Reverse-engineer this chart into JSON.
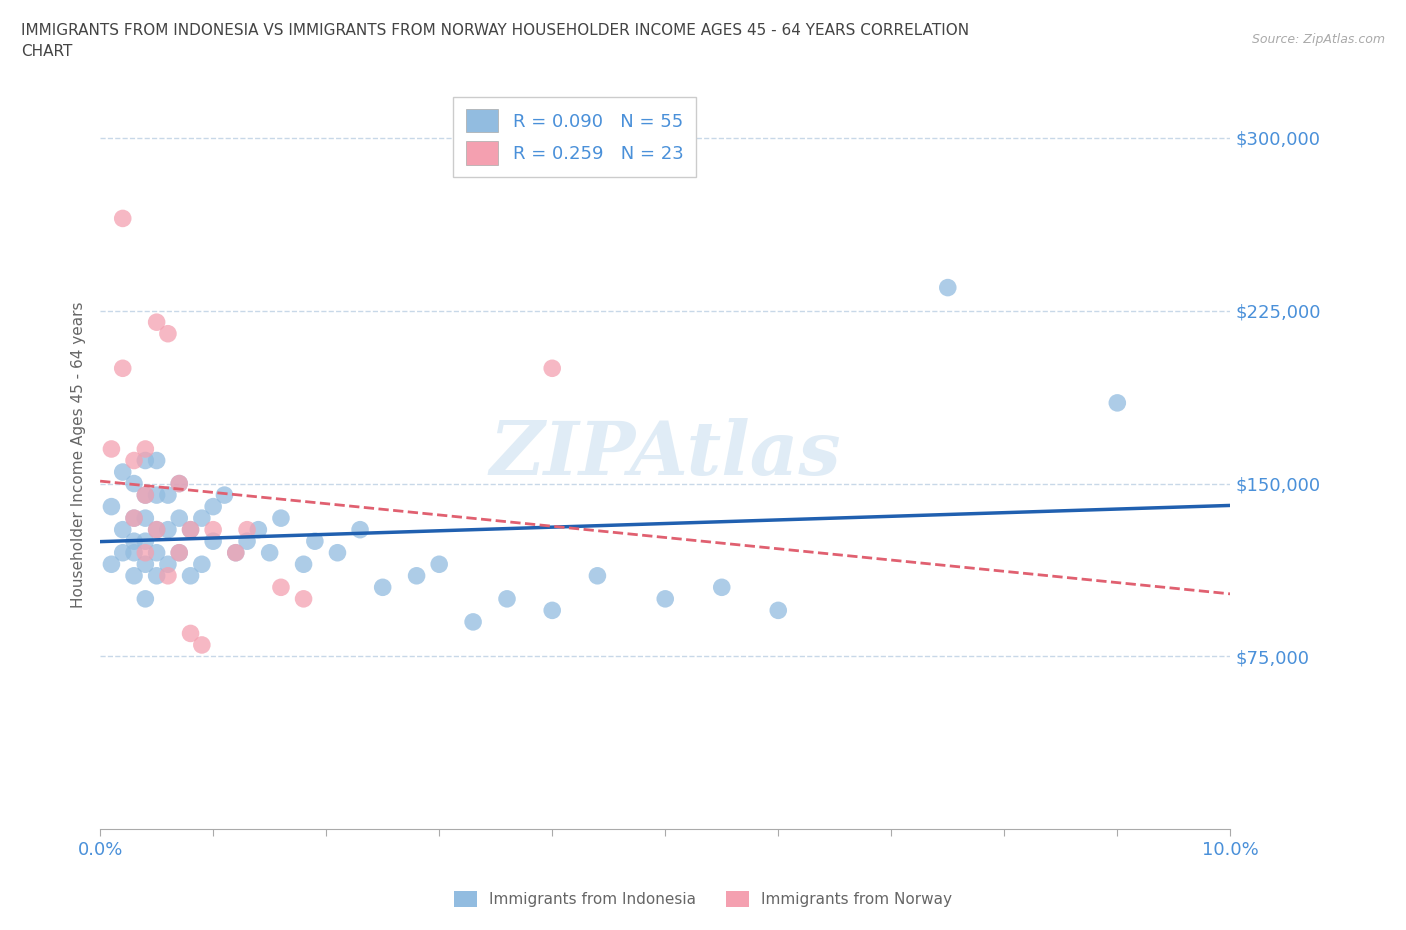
{
  "title_line1": "IMMIGRANTS FROM INDONESIA VS IMMIGRANTS FROM NORWAY HOUSEHOLDER INCOME AGES 45 - 64 YEARS CORRELATION",
  "title_line2": "CHART",
  "source": "Source: ZipAtlas.com",
  "ylabel": "Householder Income Ages 45 - 64 years",
  "xlim": [
    0,
    0.1
  ],
  "ylim": [
    0,
    325000
  ],
  "yticks": [
    75000,
    150000,
    225000,
    300000
  ],
  "ytick_labels": [
    "$75,000",
    "$150,000",
    "$225,000",
    "$300,000"
  ],
  "xticks": [
    0.0,
    0.01,
    0.02,
    0.03,
    0.04,
    0.05,
    0.06,
    0.07,
    0.08,
    0.09,
    0.1
  ],
  "watermark": "ZIPAtlas",
  "legend_R1": "R = 0.090",
  "legend_N1": "N = 55",
  "legend_R2": "R = 0.259",
  "legend_N2": "N = 23",
  "indonesia_color": "#92bce0",
  "norway_color": "#f4a0b0",
  "regression_indonesia_color": "#2060b0",
  "regression_norway_color": "#e06070",
  "background_color": "#ffffff",
  "grid_color": "#c8d8e8",
  "text_color": "#4a90d9",
  "title_color": "#444444",
  "indonesia_x": [
    0.001,
    0.001,
    0.002,
    0.002,
    0.002,
    0.003,
    0.003,
    0.003,
    0.003,
    0.003,
    0.004,
    0.004,
    0.004,
    0.004,
    0.004,
    0.004,
    0.005,
    0.005,
    0.005,
    0.005,
    0.005,
    0.006,
    0.006,
    0.006,
    0.007,
    0.007,
    0.007,
    0.008,
    0.008,
    0.009,
    0.009,
    0.01,
    0.01,
    0.011,
    0.012,
    0.013,
    0.014,
    0.015,
    0.016,
    0.018,
    0.019,
    0.021,
    0.023,
    0.025,
    0.028,
    0.03,
    0.033,
    0.036,
    0.04,
    0.044,
    0.05,
    0.055,
    0.06,
    0.075,
    0.09
  ],
  "indonesia_y": [
    115000,
    140000,
    120000,
    130000,
    155000,
    110000,
    120000,
    125000,
    135000,
    150000,
    100000,
    115000,
    125000,
    135000,
    145000,
    160000,
    110000,
    120000,
    130000,
    145000,
    160000,
    115000,
    130000,
    145000,
    120000,
    135000,
    150000,
    110000,
    130000,
    115000,
    135000,
    125000,
    140000,
    145000,
    120000,
    125000,
    130000,
    120000,
    135000,
    115000,
    125000,
    120000,
    130000,
    105000,
    110000,
    115000,
    90000,
    100000,
    95000,
    110000,
    100000,
    105000,
    95000,
    235000,
    185000
  ],
  "norway_x": [
    0.001,
    0.002,
    0.002,
    0.003,
    0.003,
    0.004,
    0.004,
    0.004,
    0.005,
    0.005,
    0.006,
    0.006,
    0.007,
    0.007,
    0.008,
    0.008,
    0.009,
    0.01,
    0.012,
    0.013,
    0.016,
    0.018,
    0.04
  ],
  "norway_y": [
    165000,
    200000,
    265000,
    135000,
    160000,
    120000,
    145000,
    165000,
    130000,
    220000,
    110000,
    215000,
    120000,
    150000,
    85000,
    130000,
    80000,
    130000,
    120000,
    130000,
    105000,
    100000,
    200000
  ]
}
